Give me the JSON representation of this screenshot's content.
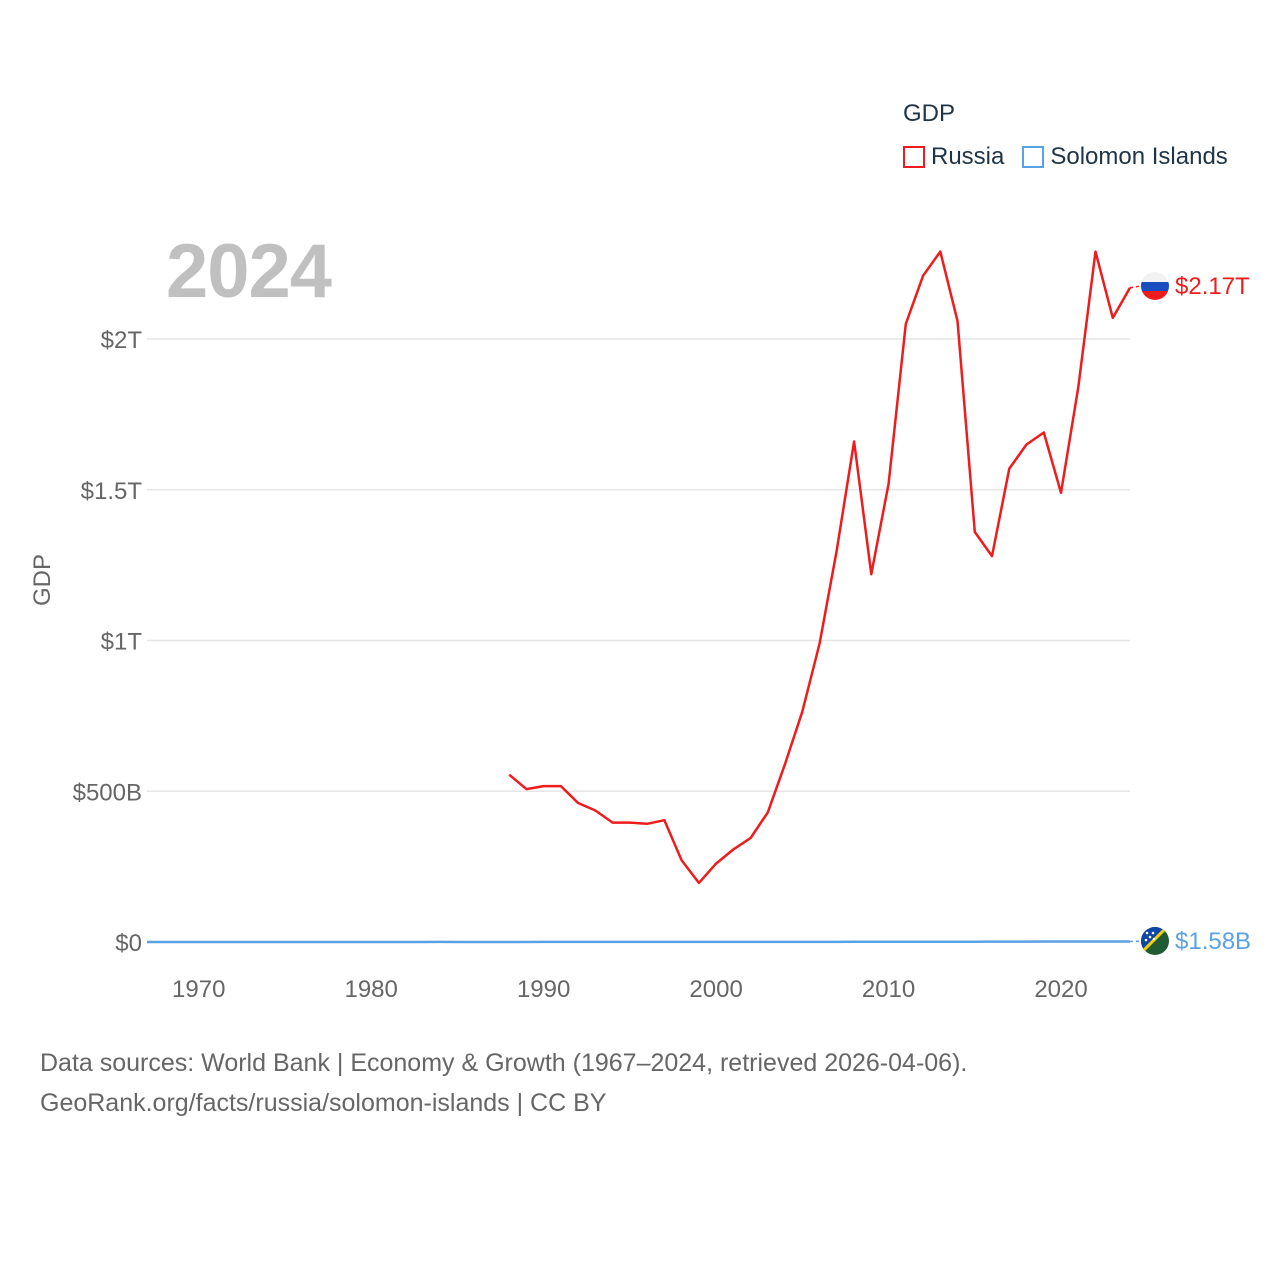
{
  "legend": {
    "title": "GDP",
    "items": [
      {
        "label": "Russia",
        "color": "#ee1c1c"
      },
      {
        "label": "Solomon Islands",
        "color": "#5aa2e6"
      }
    ]
  },
  "year_label": "2024",
  "footer": {
    "line1": "Data sources: World Bank | Economy & Growth (1967–2024, retrieved 2026-04-06).",
    "line2": "GeoRank.org/facts/russia/solomon-islands | CC BY"
  },
  "chart_data": {
    "type": "line",
    "title": "",
    "ylabel": "GDP",
    "xlabel": "",
    "xlim": [
      1967,
      2024
    ],
    "ylim": [
      0,
      2000000000000
    ],
    "x_ticks": [
      1970,
      1980,
      1990,
      2000,
      2010,
      2020
    ],
    "x_tick_labels": [
      "1970",
      "1980",
      "1990",
      "2000",
      "2010",
      "2020"
    ],
    "y_ticks": [
      0,
      500000000000,
      1000000000000,
      1500000000000,
      2000000000000
    ],
    "y_tick_labels": [
      "$0",
      "$500B",
      "$1T",
      "$1.5T",
      "$2T"
    ],
    "grid": true,
    "series": [
      {
        "name": "Russia",
        "color": "#ee1c1c",
        "end_label": "$2.17T",
        "x": [
          1988,
          1989,
          1990,
          1991,
          1992,
          1993,
          1994,
          1995,
          1996,
          1997,
          1998,
          1999,
          2000,
          2001,
          2002,
          2003,
          2004,
          2005,
          2006,
          2007,
          2008,
          2009,
          2010,
          2011,
          2012,
          2013,
          2014,
          2015,
          2016,
          2017,
          2018,
          2019,
          2020,
          2021,
          2022,
          2023,
          2024
        ],
        "values": [
          555000000000,
          507000000000,
          517000000000,
          517000000000,
          461000000000,
          436000000000,
          396000000000,
          396000000000,
          392000000000,
          404000000000,
          271000000000,
          196000000000,
          260000000000,
          307000000000,
          345000000000,
          430000000000,
          591000000000,
          764000000000,
          990000000000,
          1300000000000,
          1660000000000,
          1220000000000,
          1520000000000,
          2050000000000,
          2210000000000,
          2290000000000,
          2060000000000,
          1360000000000,
          1280000000000,
          1570000000000,
          1650000000000,
          1690000000000,
          1490000000000,
          1840000000000,
          2290000000000,
          2070000000000,
          2170000000000
        ]
      },
      {
        "name": "Solomon Islands",
        "color": "#5aa2e6",
        "end_label": "$1.58B",
        "x": [
          1967,
          1968,
          1969,
          1970,
          1971,
          1972,
          1973,
          1974,
          1975,
          1976,
          1977,
          1978,
          1979,
          1980,
          1981,
          1982,
          1983,
          1984,
          1985,
          1986,
          1987,
          1988,
          1989,
          1990,
          1991,
          1992,
          1993,
          1994,
          1995,
          1996,
          1997,
          1998,
          1999,
          2000,
          2001,
          2002,
          2003,
          2004,
          2005,
          2006,
          2007,
          2008,
          2009,
          2010,
          2011,
          2012,
          2013,
          2014,
          2015,
          2016,
          2017,
          2018,
          2019,
          2020,
          2021,
          2022,
          2023,
          2024
        ],
        "values": [
          13000000,
          14000000,
          15000000,
          16000000,
          17000000,
          20000000,
          25000000,
          33000000,
          35000000,
          39000000,
          50000000,
          61000000,
          79000000,
          116000000,
          136000000,
          129000000,
          126000000,
          167000000,
          149000000,
          127000000,
          135000000,
          161000000,
          164000000,
          180000000,
          194000000,
          215000000,
          242000000,
          271000000,
          313000000,
          360000000,
          390000000,
          344000000,
          338000000,
          310000000,
          287000000,
          239000000,
          256000000,
          297000000,
          341000000,
          391000000,
          460000000,
          534000000,
          498000000,
          681000000,
          880000000,
          1010000000,
          1080000000,
          1120000000,
          1130000000,
          1200000000,
          1320000000,
          1450000000,
          1530000000,
          1550000000,
          1600000000,
          1600000000,
          1600000000,
          1580000000
        ]
      }
    ]
  }
}
